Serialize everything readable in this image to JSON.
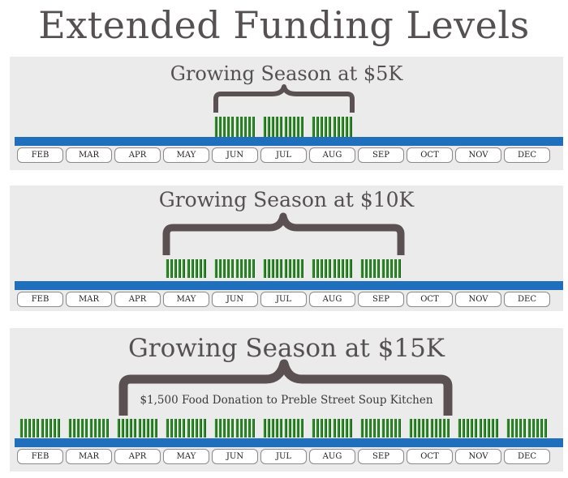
{
  "title": "Extended Funding Levels",
  "months": [
    "FEB",
    "MAR",
    "APR",
    "MAY",
    "JUN",
    "JUL",
    "AUG",
    "SEP",
    "OCT",
    "NOV",
    "DEC"
  ],
  "panels": [
    {
      "title": "Growing Season at $5K",
      "active_months": [
        "JUN",
        "JUL",
        "AUG"
      ],
      "note": ""
    },
    {
      "title": "Growing Season at $10K",
      "active_months": [
        "MAY",
        "JUN",
        "JUL",
        "AUG",
        "SEP"
      ],
      "note": ""
    },
    {
      "title": "Growing Season at $15K",
      "active_months": [
        "FEB",
        "MAR",
        "APR",
        "MAY",
        "JUN",
        "JUL",
        "AUG",
        "SEP",
        "OCT",
        "NOV",
        "DEC"
      ],
      "note": "$1,500 Food Donation to Preble Street Soup Kitchen"
    }
  ],
  "colors": {
    "bar": "#2f8a2c",
    "track": "#1f6fbd",
    "brace": "#5b5153",
    "panel": "#ebebeb"
  }
}
